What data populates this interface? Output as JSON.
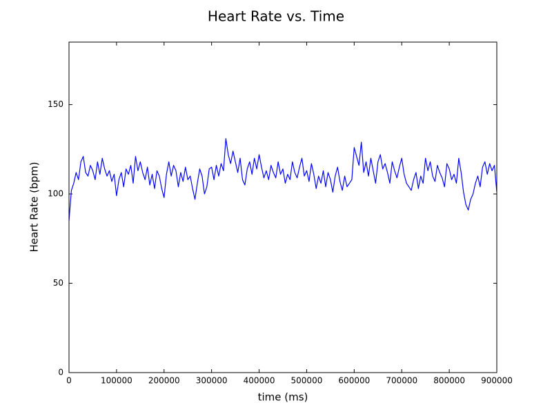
{
  "chart_data": {
    "type": "line",
    "title": "Heart Rate vs. Time",
    "x_label": "time (ms)",
    "y_label": "Heart Rate (bpm)",
    "xlim": [
      0,
      900000
    ],
    "xticks": [
      0,
      100000,
      200000,
      300000,
      400000,
      500000,
      600000,
      700000,
      800000,
      900000
    ],
    "ylim": [
      0,
      185
    ],
    "yticks": [
      0,
      50,
      100,
      150
    ],
    "grid": false,
    "x": [
      0,
      5000,
      10000,
      15000,
      20000,
      25000,
      30000,
      35000,
      40000,
      45000,
      50000,
      55000,
      60000,
      65000,
      70000,
      75000,
      80000,
      85000,
      90000,
      95000,
      100000,
      105000,
      110000,
      115000,
      120000,
      125000,
      130000,
      135000,
      140000,
      145000,
      150000,
      155000,
      160000,
      165000,
      170000,
      175000,
      180000,
      185000,
      190000,
      195000,
      200000,
      205000,
      210000,
      215000,
      220000,
      225000,
      230000,
      235000,
      240000,
      245000,
      250000,
      255000,
      260000,
      265000,
      270000,
      275000,
      280000,
      285000,
      290000,
      295000,
      300000,
      305000,
      310000,
      315000,
      320000,
      325000,
      330000,
      335000,
      340000,
      345000,
      350000,
      355000,
      360000,
      365000,
      370000,
      375000,
      380000,
      385000,
      390000,
      395000,
      400000,
      405000,
      410000,
      415000,
      420000,
      425000,
      430000,
      435000,
      440000,
      445000,
      450000,
      455000,
      460000,
      465000,
      470000,
      475000,
      480000,
      485000,
      490000,
      495000,
      500000,
      505000,
      510000,
      515000,
      520000,
      525000,
      530000,
      535000,
      540000,
      545000,
      550000,
      555000,
      560000,
      565000,
      570000,
      575000,
      580000,
      585000,
      590000,
      595000,
      600000,
      605000,
      610000,
      615000,
      620000,
      625000,
      630000,
      635000,
      640000,
      645000,
      650000,
      655000,
      660000,
      665000,
      670000,
      675000,
      680000,
      685000,
      690000,
      695000,
      700000,
      705000,
      710000,
      715000,
      720000,
      725000,
      730000,
      735000,
      740000,
      745000,
      750000,
      755000,
      760000,
      765000,
      770000,
      775000,
      780000,
      785000,
      790000,
      795000,
      800000,
      805000,
      810000,
      815000,
      820000,
      825000,
      830000,
      835000,
      840000,
      845000,
      850000,
      855000,
      860000,
      865000,
      870000,
      875000,
      880000,
      885000,
      890000,
      895000,
      900000
    ],
    "series": [
      {
        "color": "#0000ff",
        "values": [
          85,
          102,
          106,
          112,
          108,
          118,
          121,
          112,
          110,
          116,
          113,
          108,
          118,
          111,
          120,
          114,
          110,
          113,
          107,
          111,
          99,
          108,
          112,
          104,
          114,
          111,
          116,
          106,
          121,
          113,
          118,
          112,
          108,
          115,
          105,
          111,
          103,
          113,
          110,
          103,
          98,
          111,
          118,
          110,
          116,
          113,
          104,
          112,
          107,
          115,
          108,
          110,
          103,
          97,
          106,
          114,
          110,
          100,
          104,
          114,
          115,
          108,
          116,
          110,
          117,
          113,
          131,
          122,
          117,
          124,
          118,
          112,
          120,
          108,
          105,
          114,
          118,
          111,
          120,
          114,
          122,
          115,
          109,
          113,
          108,
          116,
          112,
          109,
          118,
          111,
          114,
          106,
          111,
          108,
          118,
          112,
          109,
          115,
          120,
          110,
          113,
          107,
          117,
          111,
          103,
          110,
          106,
          113,
          104,
          112,
          108,
          101,
          110,
          115,
          107,
          102,
          110,
          104,
          106,
          108,
          126,
          121,
          116,
          129,
          112,
          118,
          110,
          120,
          113,
          106,
          118,
          122,
          114,
          117,
          112,
          106,
          118,
          113,
          109,
          115,
          120,
          111,
          106,
          104,
          102,
          108,
          112,
          103,
          110,
          106,
          120,
          113,
          118,
          110,
          107,
          116,
          112,
          109,
          104,
          117,
          114,
          108,
          111,
          106,
          120,
          112,
          101,
          94,
          91,
          97,
          100,
          106,
          110,
          104,
          115,
          118,
          111,
          117,
          113,
          116,
          101
        ]
      }
    ]
  }
}
